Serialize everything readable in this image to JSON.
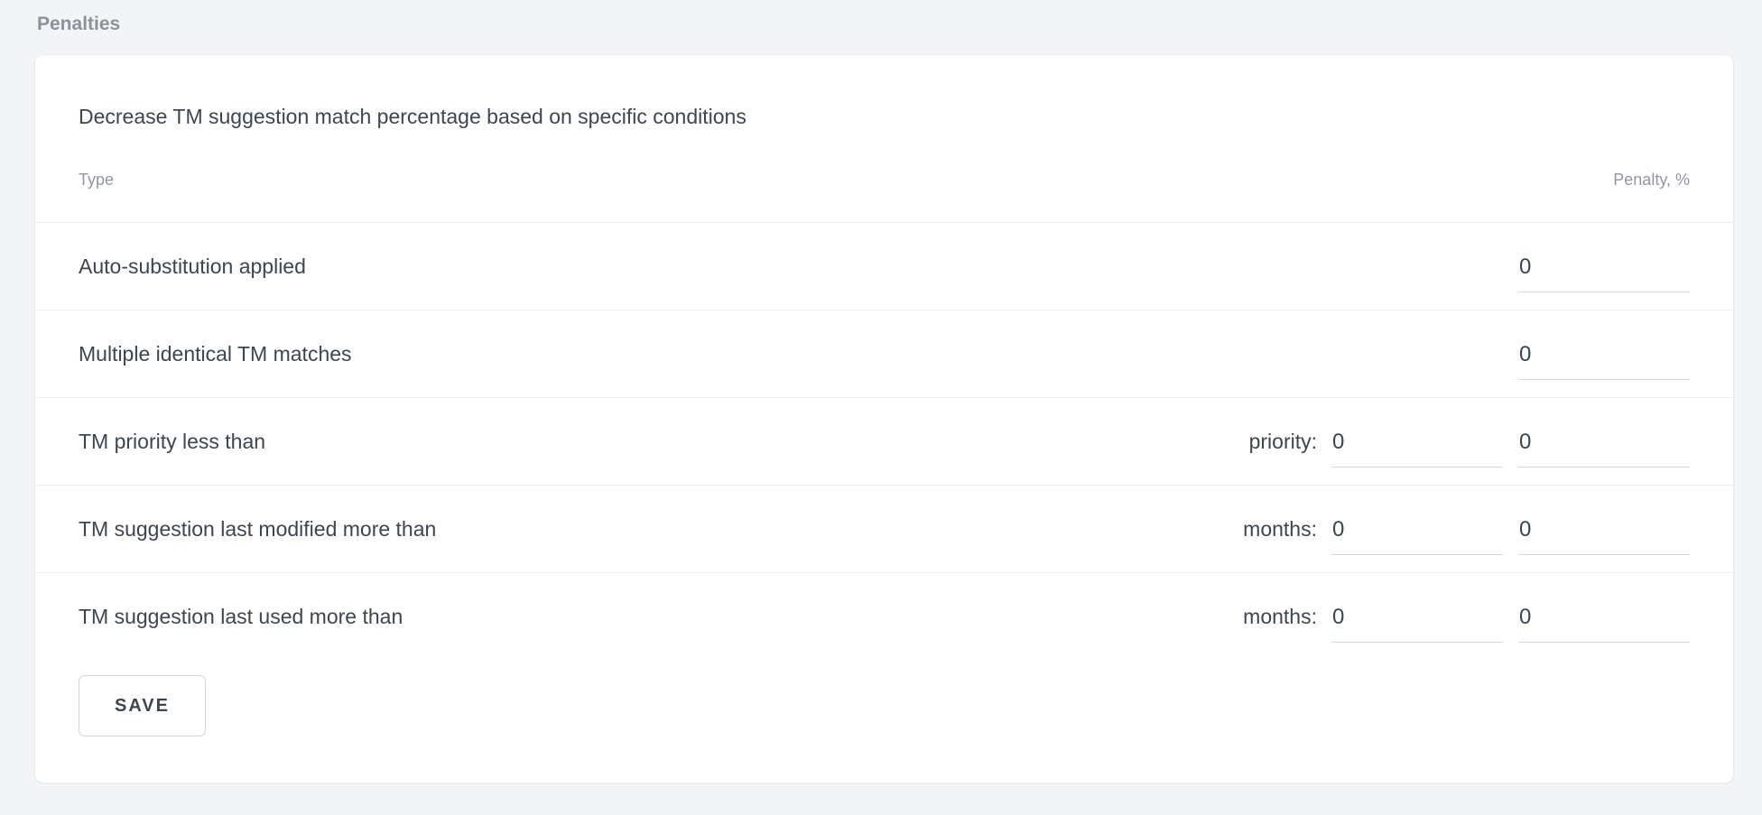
{
  "page": {
    "section_label": "Penalties"
  },
  "card": {
    "title": "Decrease TM suggestion match percentage based on specific conditions",
    "columns": {
      "type": "Type",
      "penalty": "Penalty, %"
    },
    "rows": [
      {
        "label": "Auto-substitution applied",
        "penalty_value": "0"
      },
      {
        "label": "Multiple identical TM matches",
        "penalty_value": "0"
      },
      {
        "label": "TM priority less than",
        "condition_label": "priority:",
        "condition_value": "0",
        "penalty_value": "0"
      },
      {
        "label": "TM suggestion last modified more than",
        "condition_label": "months:",
        "condition_value": "0",
        "penalty_value": "0"
      },
      {
        "label": "TM suggestion last used more than",
        "condition_label": "months:",
        "condition_value": "0",
        "penalty_value": "0"
      }
    ],
    "save_button": "SAVE"
  },
  "colors": {
    "page_background": "#f3f4f6",
    "card_background": "#ffffff",
    "primary_text": "#3d464d",
    "muted_text": "#9197a0",
    "divider": "#e8eaeb",
    "input_underline": "#d6d8da"
  }
}
